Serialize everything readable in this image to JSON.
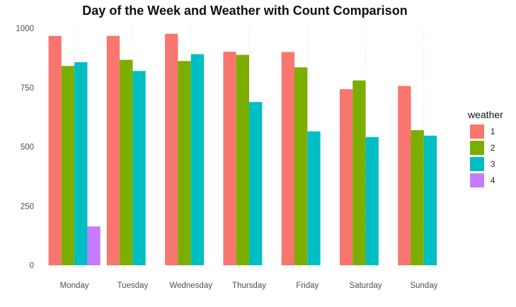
{
  "chart_data": {
    "type": "bar",
    "title": "Day of the Week and Weather with Count Comparison",
    "xlabel": "",
    "ylabel": "",
    "categories": [
      "Monday",
      "Tuesday",
      "Wednesday",
      "Thursday",
      "Friday",
      "Saturday",
      "Sunday"
    ],
    "ylim": [
      0,
      1000
    ],
    "yticks": [
      0,
      250,
      500,
      750,
      1000
    ],
    "grid": false,
    "legend": {
      "title": "weather",
      "position": "right"
    },
    "series": [
      {
        "name": "1",
        "color": "#F8766D",
        "values": [
          968,
          968,
          977,
          901,
          900,
          743,
          757
        ]
      },
      {
        "name": "2",
        "color": "#7CAE00",
        "values": [
          841,
          867,
          862,
          888,
          835,
          780,
          570
        ]
      },
      {
        "name": "3",
        "color": "#00BFC4",
        "values": [
          857,
          820,
          891,
          689,
          565,
          541,
          547
        ]
      },
      {
        "name": "4",
        "color": "#C77CFF",
        "values": [
          164,
          null,
          null,
          null,
          null,
          null,
          null
        ]
      }
    ]
  }
}
